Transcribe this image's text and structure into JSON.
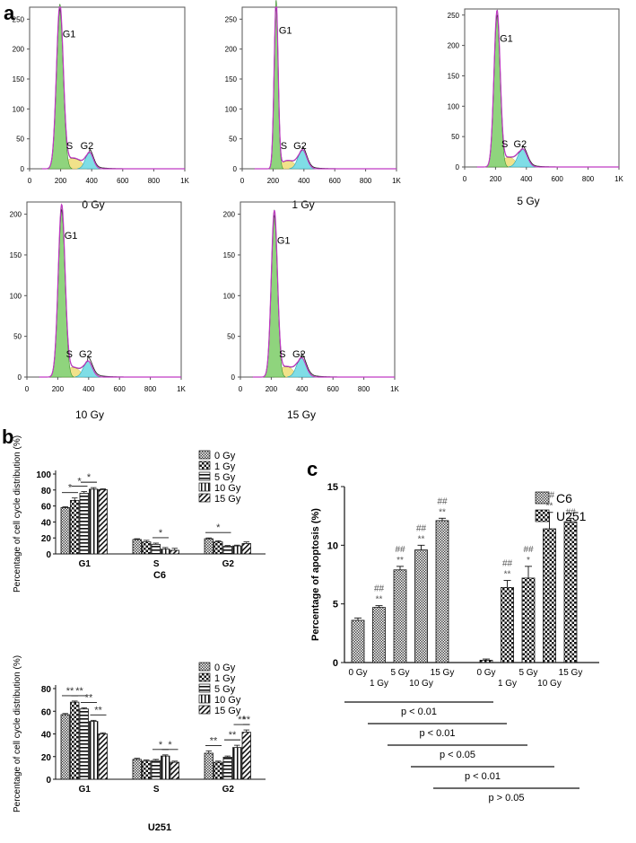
{
  "panels": {
    "a": "a",
    "b": "b",
    "c": "c"
  },
  "chart_data": [
    {
      "type": "area",
      "id": "hist-0",
      "panel": "a",
      "dose_label": "0 Gy",
      "peaks": {
        "g1": "G1",
        "s": "S",
        "g2": "G2"
      },
      "x": {
        "ticks": [
          0,
          200,
          400,
          600,
          800,
          1000
        ],
        "tick_labels": [
          "0",
          "200",
          "400",
          "600",
          "800",
          "1K"
        ],
        "lim": [
          0,
          1000
        ]
      },
      "y": {
        "ticks": [
          0,
          50,
          100,
          150,
          200,
          250
        ],
        "lim": [
          0,
          270
        ]
      },
      "curve": {
        "g1_pos": 195,
        "g1_height": 275,
        "g1_width": 22,
        "s_height": 18,
        "g2_pos": 385,
        "g2_height": 28,
        "g2_width": 25,
        "s_end": 370
      }
    },
    {
      "type": "area",
      "id": "hist-1",
      "panel": "a",
      "dose_label": "1 Gy",
      "peaks": {
        "g1": "G1",
        "s": "S",
        "g2": "G2"
      },
      "x": {
        "ticks": [
          0,
          200,
          400,
          600,
          800,
          1000
        ],
        "tick_labels": [
          "0",
          "200",
          "400",
          "600",
          "800",
          "1K"
        ],
        "lim": [
          0,
          1000
        ]
      },
      "y": {
        "ticks": [
          0,
          50,
          100,
          150,
          200,
          250
        ],
        "lim": [
          0,
          270
        ]
      },
      "curve": {
        "g1_pos": 220,
        "g1_height": 282,
        "g1_width": 13,
        "s_height": 14,
        "g2_pos": 390,
        "g2_height": 32,
        "g2_width": 28,
        "s_end": 370
      }
    },
    {
      "type": "area",
      "id": "hist-5",
      "panel": "a",
      "dose_label": "5 Gy",
      "peaks": {
        "g1": "G1",
        "s": "S",
        "g2": "G2"
      },
      "x": {
        "ticks": [
          0,
          200,
          400,
          600,
          800,
          1000
        ],
        "tick_labels": [
          "0",
          "200",
          "400",
          "600",
          "800",
          "1K"
        ],
        "lim": [
          0,
          1000
        ]
      },
      "y": {
        "ticks": [
          0,
          50,
          100,
          150,
          200,
          250
        ],
        "lim": [
          0,
          260
        ]
      },
      "curve": {
        "g1_pos": 210,
        "g1_height": 258,
        "g1_width": 20,
        "s_height": 16,
        "g2_pos": 375,
        "g2_height": 30,
        "g2_width": 30,
        "s_end": 360
      }
    },
    {
      "type": "area",
      "id": "hist-10",
      "panel": "a",
      "dose_label": "10 Gy",
      "peaks": {
        "g1": "G1",
        "s": "S",
        "g2": "G2"
      },
      "x": {
        "ticks": [
          0,
          200,
          400,
          600,
          800,
          1000
        ],
        "tick_labels": [
          "0",
          "200",
          "400",
          "600",
          "800",
          "1K"
        ],
        "lim": [
          0,
          1000
        ]
      },
      "y": {
        "ticks": [
          0,
          50,
          100,
          150,
          200
        ],
        "lim": [
          0,
          215
        ]
      },
      "curve": {
        "g1_pos": 225,
        "g1_height": 212,
        "g1_width": 22,
        "s_height": 12,
        "g2_pos": 395,
        "g2_height": 20,
        "g2_width": 28,
        "s_end": 375
      }
    },
    {
      "type": "area",
      "id": "hist-15",
      "panel": "a",
      "dose_label": "15 Gy",
      "peaks": {
        "g1": "G1",
        "s": "S",
        "g2": "G2"
      },
      "x": {
        "ticks": [
          0,
          200,
          400,
          600,
          800,
          1000
        ],
        "tick_labels": [
          "0",
          "200",
          "400",
          "600",
          "800",
          "1K"
        ],
        "lim": [
          0,
          1000
        ]
      },
      "y": {
        "ticks": [
          0,
          50,
          100,
          150,
          200
        ],
        "lim": [
          0,
          215
        ]
      },
      "curve": {
        "g1_pos": 220,
        "g1_height": 205,
        "g1_width": 20,
        "s_height": 13,
        "g2_pos": 395,
        "g2_height": 24,
        "g2_width": 30,
        "s_end": 375
      }
    },
    {
      "type": "bar",
      "id": "bar-c6",
      "panel": "b",
      "xlabel": "C6",
      "ylabel": "Percentage of cell cycle distribution (%)",
      "categories": [
        "G1",
        "S",
        "G2"
      ],
      "yticks": [
        0,
        20,
        40,
        60,
        80,
        100
      ],
      "ylim": [
        0,
        100
      ],
      "legend": [
        "0  Gy",
        "1  Gy",
        "5  Gy",
        "10  Gy",
        "15  Gy"
      ],
      "series": [
        {
          "name": "0 Gy",
          "values": [
            58,
            18,
            19
          ],
          "errors": [
            1,
            1,
            1
          ]
        },
        {
          "name": "1 Gy",
          "values": [
            67,
            15,
            15
          ],
          "errors": [
            3,
            2,
            1.5
          ]
        },
        {
          "name": "5 Gy",
          "values": [
            76,
            12,
            9.5
          ],
          "errors": [
            2,
            1.5,
            1
          ]
        },
        {
          "name": "10 Gy",
          "values": [
            81,
            6,
            10
          ],
          "errors": [
            2,
            2,
            1
          ]
        },
        {
          "name": "15 Gy",
          "values": [
            80.5,
            4.5,
            13
          ],
          "errors": [
            1,
            2.5,
            2
          ]
        }
      ],
      "significance": [
        {
          "label": "*",
          "cat": 0,
          "from": 0,
          "to": 1
        },
        {
          "label": "*",
          "cat": 0,
          "from": 1,
          "to": 2
        },
        {
          "label": "*",
          "cat": 0,
          "from": 2,
          "to": 3
        },
        {
          "label": "*",
          "cat": 1,
          "from": 2,
          "to": 3
        },
        {
          "label": "*",
          "cat": 2,
          "from": 0,
          "to": 2
        }
      ]
    },
    {
      "type": "bar",
      "id": "bar-u251",
      "panel": "b",
      "xlabel": "U251",
      "ylabel": "Percentage of cell cycle distribution (%)",
      "categories": [
        "G1",
        "S",
        "G2"
      ],
      "yticks": [
        0,
        20,
        40,
        60,
        80
      ],
      "ylim": [
        0,
        80
      ],
      "legend": [
        "0  Gy",
        "1  Gy",
        "5  Gy",
        "10  Gy",
        "15  Gy"
      ],
      "series": [
        {
          "name": "0 Gy",
          "values": [
            57,
            17.5,
            23
          ],
          "errors": [
            1,
            1,
            2
          ]
        },
        {
          "name": "1 Gy",
          "values": [
            68,
            16,
            15
          ],
          "errors": [
            1,
            1,
            1
          ]
        },
        {
          "name": "5 Gy",
          "values": [
            62,
            16.5,
            19.5
          ],
          "errors": [
            1,
            1,
            1
          ]
        },
        {
          "name": "10 Gy",
          "values": [
            51,
            20.5,
            28
          ],
          "errors": [
            1,
            1,
            2
          ]
        },
        {
          "name": "15 Gy",
          "values": [
            40,
            15,
            41.5
          ],
          "errors": [
            1,
            1,
            2
          ]
        }
      ],
      "significance": [
        {
          "label": "**",
          "cat": 0,
          "from": 0,
          "to": 1
        },
        {
          "label": "**",
          "cat": 0,
          "from": 1,
          "to": 2
        },
        {
          "label": "**",
          "cat": 0,
          "from": 2,
          "to": 3
        },
        {
          "label": "**",
          "cat": 0,
          "from": 3,
          "to": 4
        },
        {
          "label": "*",
          "cat": 1,
          "from": 2,
          "to": 3
        },
        {
          "label": "*",
          "cat": 1,
          "from": 3,
          "to": 4
        },
        {
          "label": "**",
          "cat": 2,
          "from": 0,
          "to": 1
        },
        {
          "label": "**",
          "cat": 2,
          "from": 2,
          "to": 3
        },
        {
          "label": "**",
          "cat": 2,
          "from": 3,
          "to": 4
        },
        {
          "label": "**",
          "cat": 2,
          "from": 4,
          "to": 4
        }
      ]
    },
    {
      "type": "bar",
      "id": "bar-apoptosis",
      "panel": "c",
      "ylabel": "Percentage of apoptosis (%)",
      "yticks": [
        0,
        5,
        10,
        15
      ],
      "ylim": [
        0,
        15
      ],
      "legend": [
        "C6",
        "U251"
      ],
      "groups": [
        {
          "name": "C6",
          "bars": [
            {
              "label": "0 Gy",
              "value": 3.6,
              "error": 0.2,
              "marks": []
            },
            {
              "label": "1 Gy",
              "value": 4.7,
              "error": 0.15,
              "marks": [
                "**",
                "##"
              ]
            },
            {
              "label": "5 Gy",
              "value": 7.9,
              "error": 0.3,
              "marks": [
                "**",
                "##"
              ]
            },
            {
              "label": "10 Gy",
              "value": 9.6,
              "error": 0.4,
              "marks": [
                "**",
                "##"
              ]
            },
            {
              "label": "15 Gy",
              "value": 12.1,
              "error": 0.2,
              "marks": [
                "**",
                "##"
              ]
            }
          ]
        },
        {
          "name": "U251",
          "bars": [
            {
              "label": "0 Gy",
              "value": 0.2,
              "error": 0.1,
              "marks": []
            },
            {
              "label": "1 Gy",
              "value": 6.4,
              "error": 0.6,
              "marks": [
                "**",
                "##"
              ]
            },
            {
              "label": "5 Gy",
              "value": 7.2,
              "error": 1.0,
              "marks": [
                "*",
                "##"
              ]
            },
            {
              "label": "10 Gy",
              "value": 11.4,
              "error": 1.4,
              "marks": [
                "**",
                "##"
              ]
            },
            {
              "label": "15 Gy",
              "value": 12.0,
              "error": 0.3,
              "marks": [
                "##"
              ]
            }
          ]
        }
      ],
      "pvalues": [
        "p < 0.01",
        "p < 0.01",
        "p < 0.05",
        "p < 0.01",
        "p > 0.05"
      ]
    }
  ]
}
